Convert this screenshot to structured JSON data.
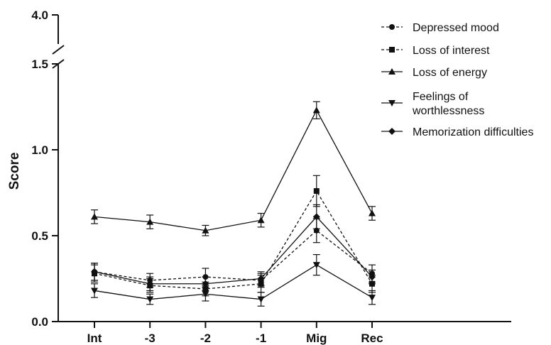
{
  "chart_data": {
    "type": "line",
    "title": "",
    "xlabel": "",
    "ylabel": "Score",
    "categories": [
      "Int",
      "-3",
      "-2",
      "-1",
      "Mig",
      "Rec"
    ],
    "y_axis": {
      "segments": [
        [
          0.0,
          1.5
        ],
        [
          4.0,
          4.0
        ]
      ],
      "axis_break": true,
      "tick_labels": [
        "0.0",
        "0.5",
        "1.0",
        "1.5",
        "4.0"
      ],
      "tick_values": [
        0.0,
        0.5,
        1.0,
        1.5,
        4.0
      ]
    },
    "grid": false,
    "legend_position": "top-right",
    "series": [
      {
        "name": "Depressed mood",
        "marker": "circle",
        "line_style": "dashed",
        "values": [
          0.29,
          0.24,
          0.26,
          0.24,
          0.53,
          0.28
        ],
        "errors": [
          0.05,
          0.04,
          0.05,
          0.04,
          0.07,
          0.05
        ]
      },
      {
        "name": "Loss of interest",
        "marker": "square",
        "line_style": "dashed",
        "values": [
          0.28,
          0.21,
          0.19,
          0.22,
          0.76,
          0.22
        ],
        "errors": [
          0.05,
          0.04,
          0.04,
          0.05,
          0.09,
          0.05
        ]
      },
      {
        "name": "Loss of energy",
        "marker": "triangle-up",
        "line_style": "solid",
        "values": [
          0.61,
          0.58,
          0.53,
          0.59,
          1.23,
          0.63
        ],
        "errors": [
          0.04,
          0.04,
          0.03,
          0.04,
          0.05,
          0.04
        ]
      },
      {
        "name": "Feelings of\nworthlessness",
        "name_lines": [
          "Feelings of",
          "worthlessness"
        ],
        "marker": "triangle-down",
        "line_style": "solid",
        "values": [
          0.18,
          0.13,
          0.16,
          0.13,
          0.33,
          0.14
        ],
        "errors": [
          0.04,
          0.03,
          0.04,
          0.04,
          0.06,
          0.04
        ]
      },
      {
        "name": "Memorization difficulties",
        "marker": "diamond",
        "line_style": "solid",
        "values": [
          0.29,
          0.22,
          0.22,
          0.25,
          0.61,
          0.26
        ],
        "errors": [
          0.05,
          0.04,
          0.04,
          0.04,
          0.07,
          0.04
        ]
      }
    ]
  }
}
